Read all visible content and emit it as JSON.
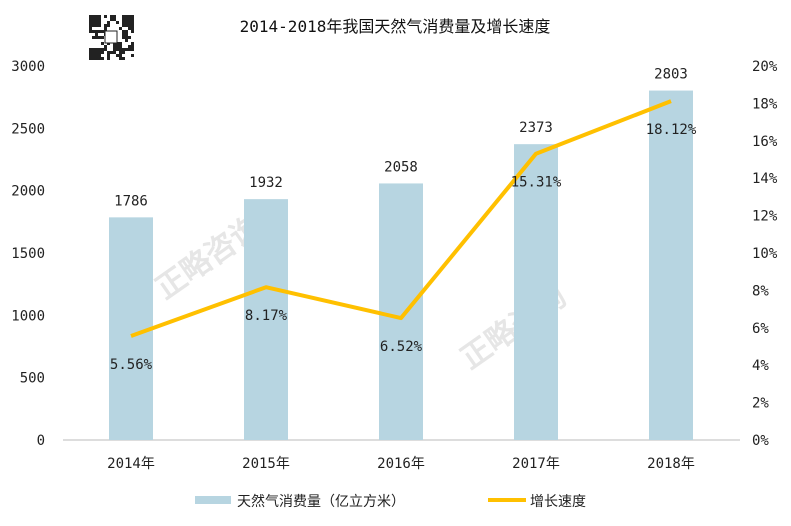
{
  "chart_data": {
    "type": "bar+line",
    "title": "2014-2018年我国天然气消费量及增长速度",
    "categories": [
      "2014年",
      "2015年",
      "2016年",
      "2017年",
      "2018年"
    ],
    "series": [
      {
        "name": "天然气消费量（亿立方米）",
        "type": "bar",
        "axis": "left",
        "values": [
          1786,
          1932,
          2058,
          2373,
          2803
        ],
        "labels": [
          "1786",
          "1932",
          "2058",
          "2373",
          "2803"
        ],
        "color": "#b7d5e1"
      },
      {
        "name": "增长速度",
        "type": "line",
        "axis": "right",
        "values": [
          5.56,
          8.17,
          6.52,
          15.31,
          18.12
        ],
        "labels": [
          "5.56%",
          "8.17%",
          "6.52%",
          "15.31%",
          "18.12%"
        ],
        "color": "#ffc000"
      }
    ],
    "left_axis": {
      "range": [
        0,
        3000
      ],
      "ticks": [
        "0",
        "500",
        "1000",
        "1500",
        "2000",
        "2500",
        "3000"
      ]
    },
    "right_axis": {
      "range": [
        0,
        20
      ],
      "ticks": [
        "0%",
        "2%",
        "4%",
        "6%",
        "8%",
        "10%",
        "12%",
        "14%",
        "16%",
        "18%",
        "20%"
      ]
    },
    "grid": false,
    "legend": "bottom"
  },
  "watermark": "正略咨询"
}
